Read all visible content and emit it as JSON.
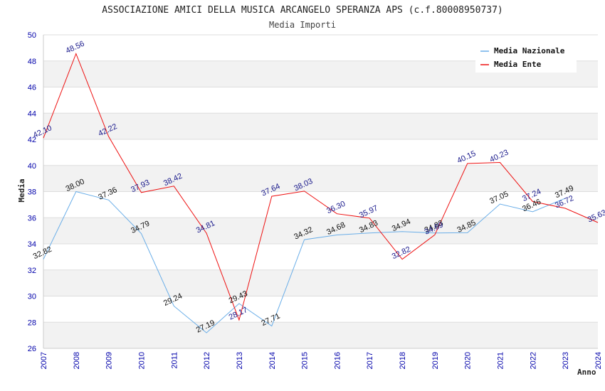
{
  "chart_data": {
    "type": "line",
    "title": "ASSOCIAZIONE AMICI DELLA MUSICA ARCANGELO SPERANZA APS (c.f.80008950737)",
    "subtitle": "Media Importi",
    "xlabel": "Anno",
    "ylabel": "Media",
    "ylim": [
      26,
      50
    ],
    "yticks": [
      "26",
      "28",
      "30",
      "32",
      "34",
      "36",
      "38",
      "40",
      "42",
      "44",
      "46",
      "48",
      "50"
    ],
    "categories": [
      "2007",
      "2008",
      "2009",
      "2010",
      "2011",
      "2012",
      "2013",
      "2014",
      "2015",
      "2016",
      "2017",
      "2018",
      "2019",
      "2020",
      "2021",
      "2022",
      "2023",
      "2024"
    ],
    "series": [
      {
        "name": "Media Nazionale",
        "color": "#6aaee8",
        "values": [
          32.82,
          38.0,
          37.36,
          34.79,
          29.24,
          27.19,
          29.43,
          27.71,
          34.32,
          34.68,
          34.83,
          34.94,
          34.83,
          34.85,
          37.05,
          36.46,
          37.49,
          null
        ],
        "labels": [
          "32.82",
          "38.00",
          "37.36",
          "34.79",
          "29.24",
          "27.19",
          "29.43",
          "27.71",
          "34.32",
          "34.68",
          "34.83",
          "34.94",
          "34.83",
          "34.85",
          "37.05",
          "36.46",
          "37.49",
          ""
        ]
      },
      {
        "name": "Media Ente",
        "color": "#ee1111",
        "values": [
          42.1,
          48.56,
          42.22,
          37.93,
          38.42,
          34.81,
          28.17,
          37.64,
          38.03,
          36.3,
          35.97,
          32.82,
          34.69,
          40.15,
          40.23,
          37.24,
          36.72,
          35.63
        ],
        "labels": [
          "42.10",
          "48.56",
          "42.22",
          "37.93",
          "38.42",
          "34.81",
          "28.17",
          "37.64",
          "38.03",
          "36.30",
          "35.97",
          "32.82",
          "34.69",
          "40.15",
          "40.23",
          "37.24",
          "36.72",
          "35.63"
        ]
      }
    ],
    "legend_position": "top-right",
    "grid": true
  }
}
